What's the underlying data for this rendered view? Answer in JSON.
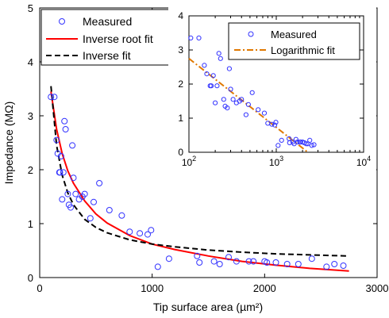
{
  "chart_data": [
    {
      "type": "scatter",
      "role": "main",
      "xlabel": "Tip surface area (µm²)",
      "ylabel": "Impedance (MΩ)",
      "xlim": [
        0,
        3000
      ],
      "ylim": [
        0,
        5
      ],
      "xticks": [
        0,
        1000,
        2000,
        3000
      ],
      "yticks": [
        0,
        1,
        2,
        3,
        4,
        5
      ],
      "legend_position": "top-left",
      "series": [
        {
          "name": "Measured",
          "kind": "markers",
          "color": "#3333ff",
          "x": [
            100,
            130,
            150,
            160,
            175,
            180,
            190,
            200,
            210,
            220,
            230,
            250,
            260,
            275,
            290,
            300,
            320,
            350,
            380,
            400,
            450,
            480,
            530,
            620,
            730,
            800,
            890,
            960,
            990,
            1050,
            1150,
            1400,
            1420,
            1550,
            1600,
            1680,
            1750,
            1860,
            1900,
            2000,
            2020,
            2100,
            2200,
            2300,
            2420,
            2550,
            2620,
            2700
          ],
          "y": [
            3.35,
            3.35,
            2.55,
            2.3,
            1.95,
            1.95,
            2.25,
            1.45,
            1.95,
            2.9,
            2.75,
            1.55,
            1.35,
            1.3,
            2.45,
            1.85,
            1.55,
            1.45,
            1.5,
            1.55,
            1.1,
            1.4,
            1.75,
            1.25,
            1.15,
            0.85,
            0.82,
            0.8,
            0.88,
            0.2,
            0.35,
            0.4,
            0.28,
            0.3,
            0.25,
            0.38,
            0.3,
            0.3,
            0.3,
            0.3,
            0.28,
            0.28,
            0.25,
            0.25,
            0.35,
            0.2,
            0.25,
            0.22
          ]
        },
        {
          "name": "Inverse root fit",
          "kind": "line",
          "style": "solid",
          "color": "#ff0000",
          "x": [
            100,
            150,
            200,
            250,
            300,
            400,
            500,
            600,
            800,
            1000,
            1200,
            1500,
            1800,
            2100,
            2400,
            2750
          ],
          "y": [
            3.45,
            2.75,
            2.3,
            1.98,
            1.75,
            1.42,
            1.18,
            1.01,
            0.78,
            0.62,
            0.52,
            0.4,
            0.3,
            0.23,
            0.17,
            0.12
          ]
        },
        {
          "name": "Inverse fit",
          "kind": "line",
          "style": "dashed",
          "color": "#000000",
          "x": [
            100,
            150,
            200,
            250,
            300,
            400,
            500,
            600,
            800,
            1000,
            1200,
            1500,
            1800,
            2100,
            2400,
            2750
          ],
          "y": [
            3.55,
            2.45,
            1.9,
            1.57,
            1.35,
            1.08,
            0.93,
            0.83,
            0.7,
            0.62,
            0.57,
            0.51,
            0.47,
            0.44,
            0.42,
            0.4
          ]
        }
      ]
    },
    {
      "type": "scatter",
      "role": "inset",
      "xscale": "log",
      "xlim": [
        100,
        10000
      ],
      "ylim": [
        0,
        4
      ],
      "xticks": [
        100,
        1000,
        10000
      ],
      "xtick_labels": [
        {
          "base": "10",
          "exp": "2"
        },
        {
          "base": "10",
          "exp": "3"
        },
        {
          "base": "10",
          "exp": "4"
        }
      ],
      "yticks": [
        0,
        1,
        2,
        3,
        4
      ],
      "legend_position": "top-right",
      "series": [
        {
          "name": "Measured",
          "kind": "markers",
          "color": "#3333ff",
          "x": [
            105,
            130,
            150,
            160,
            175,
            180,
            190,
            200,
            210,
            220,
            230,
            250,
            260,
            275,
            290,
            300,
            320,
            350,
            380,
            400,
            450,
            480,
            530,
            620,
            730,
            800,
            890,
            960,
            990,
            1050,
            1150,
            1400,
            1420,
            1550,
            1600,
            1680,
            1750,
            1860,
            1900,
            2000,
            2100,
            2200,
            2300,
            2420,
            2550,
            2700
          ],
          "y": [
            3.35,
            3.35,
            2.55,
            2.3,
            1.95,
            1.95,
            2.25,
            1.45,
            1.95,
            2.9,
            2.75,
            1.55,
            1.35,
            1.3,
            2.45,
            1.85,
            1.55,
            1.45,
            1.5,
            1.55,
            1.1,
            1.4,
            1.75,
            1.25,
            1.15,
            0.85,
            0.82,
            0.8,
            0.88,
            0.2,
            0.35,
            0.4,
            0.28,
            0.3,
            0.25,
            0.38,
            0.3,
            0.3,
            0.3,
            0.3,
            0.28,
            0.25,
            0.25,
            0.35,
            0.2,
            0.22
          ]
        },
        {
          "name": "Logarithmic fit",
          "kind": "line",
          "style": "dashdot",
          "color": "#e07800",
          "x": [
            100,
            2300
          ],
          "y": [
            2.75,
            0.0
          ]
        }
      ]
    }
  ],
  "colors": {
    "measured": "#3333ff",
    "inverse_root_fit": "#ff0000",
    "inverse_fit": "#000000",
    "logarithmic_fit": "#e07800"
  }
}
